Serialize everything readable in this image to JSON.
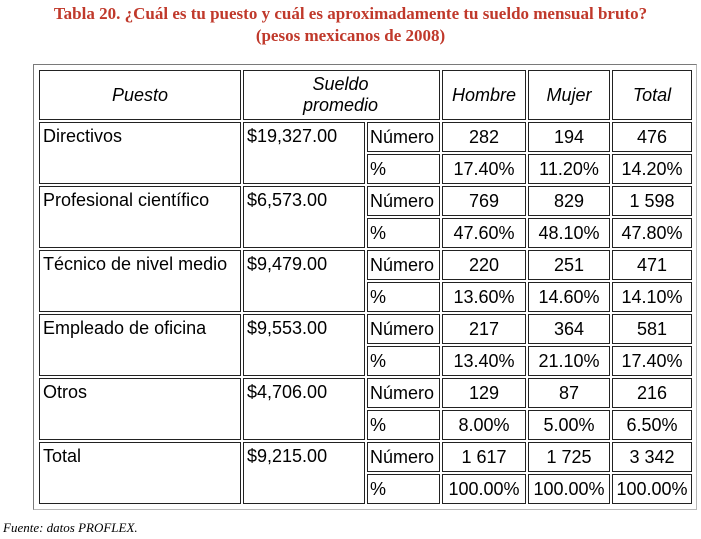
{
  "title": {
    "line1": "Tabla 20. ¿Cuál es tu puesto y cuál es aproximadamente tu sueldo mensual bruto?",
    "line2": "(pesos mexicanos de 2008)"
  },
  "headers": {
    "puesto": "Puesto",
    "sueldo": "Sueldo promedio",
    "hombre": "Hombre",
    "mujer": "Mujer",
    "total": "Total"
  },
  "rows": [
    {
      "puesto": "Directivos",
      "sueldo": "$19,327.00",
      "numero_label": "Número",
      "pct_label": "%",
      "hombre_n": "282",
      "mujer_n": "194",
      "total_n": "476",
      "hombre_p": "17.40%",
      "mujer_p": "11.20%",
      "total_p": "14.20%"
    },
    {
      "puesto": "Profesional científico",
      "sueldo": "$6,573.00",
      "numero_label": "Número",
      "pct_label": "%",
      "hombre_n": "769",
      "mujer_n": "829",
      "total_n": "1 598",
      "hombre_p": "47.60%",
      "mujer_p": "48.10%",
      "total_p": "47.80%"
    },
    {
      "puesto": "Técnico de nivel medio",
      "sueldo": "$9,479.00",
      "numero_label": "Número",
      "pct_label": "%",
      "hombre_n": "220",
      "mujer_n": "251",
      "total_n": "471",
      "hombre_p": "13.60%",
      "mujer_p": "14.60%",
      "total_p": "14.10%"
    },
    {
      "puesto": "Empleado de oficina",
      "sueldo": "$9,553.00",
      "numero_label": "Número",
      "pct_label": "%",
      "hombre_n": "217",
      "mujer_n": "364",
      "total_n": "581",
      "hombre_p": "13.40%",
      "mujer_p": "21.10%",
      "total_p": "17.40%"
    },
    {
      "puesto": "Otros",
      "sueldo": "$4,706.00",
      "numero_label": "Número",
      "pct_label": "%",
      "hombre_n": "129",
      "mujer_n": "87",
      "total_n": "216",
      "hombre_p": "8.00%",
      "mujer_p": "5.00%",
      "total_p": "6.50%"
    },
    {
      "puesto": "Total",
      "sueldo": "$9,215.00",
      "numero_label": "Número",
      "pct_label": "%",
      "hombre_n": "1 617",
      "mujer_n": "1 725",
      "total_n": "3 342",
      "hombre_p": "100.00%",
      "mujer_p": "100.00%",
      "total_p": "100.00%"
    }
  ],
  "footnote": "Fuente: datos PROFLEX."
}
